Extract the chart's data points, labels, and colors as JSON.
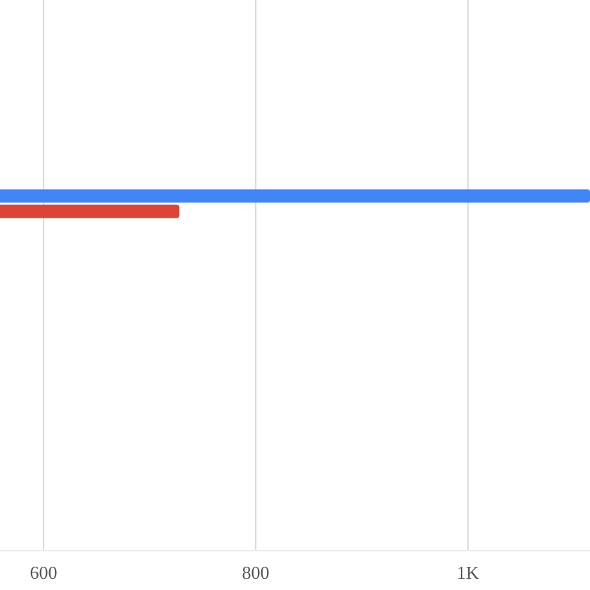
{
  "chart_data": {
    "type": "bar",
    "orientation": "horizontal",
    "categories": [
      null
    ],
    "series": [
      {
        "color": "#4285f4",
        "values": [
          1115
        ]
      },
      {
        "color": "#db4437",
        "values": [
          728
        ]
      }
    ],
    "xlim": [
      559,
      1115
    ],
    "xticks": [
      600,
      800,
      {
        "value": 1000,
        "label": "1K"
      }
    ],
    "grid": "x"
  }
}
